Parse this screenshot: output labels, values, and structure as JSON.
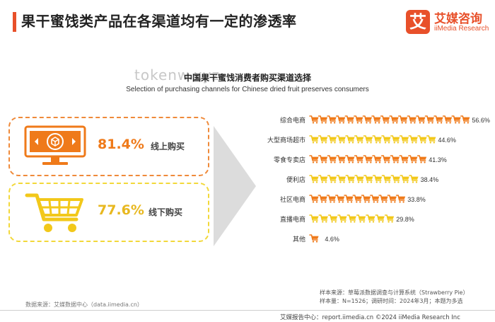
{
  "header": {
    "title": "果干蜜饯类产品在各渠道均有一定的渗透率",
    "logo_glyph": "艾",
    "logo_cn": "艾媒咨询",
    "logo_en": "iiMedia Research"
  },
  "watermark": "tokenw.xyz",
  "summary": {
    "online": {
      "pct": "81.4%",
      "label": "线上购买",
      "value": 81.4
    },
    "offline": {
      "pct": "77.6%",
      "label": "线下购买",
      "value": 77.6
    }
  },
  "chart_data": {
    "type": "bar",
    "orientation": "horizontal",
    "title": "中国果干蜜饯消费者购买渠道选择",
    "subtitle": "Selection of purchasing channels for Chinese dried fruit preserves consumers",
    "categories": [
      "综合电商",
      "大型商场超市",
      "零食专卖店",
      "便利店",
      "社区电商",
      "直播电商",
      "其他"
    ],
    "values": [
      56.6,
      44.6,
      41.3,
      38.4,
      33.8,
      29.8,
      4.6
    ],
    "value_labels": [
      "56.6%",
      "44.6%",
      "41.3%",
      "38.4%",
      "33.8%",
      "29.8%",
      "4.6%"
    ],
    "xlim": [
      0,
      60
    ],
    "colors": {
      "orange": "#ef7a1a",
      "yellow": "#f2c81a"
    },
    "bar_style": "stacked shopping-cart pictograms, alternating orange and yellow"
  },
  "footer": {
    "source_left": "数据来源：艾媒数据中心（data.iimedia.cn）",
    "note_line1": "样本来源：草莓派数据调查与计算系统（Strawberry Pie）",
    "note_line2": "样本量：N=1526；调研时间：2024年3月；本题为多选",
    "brand": "艾媒报告中心：report.iimedia.cn  ©2024  iiMedia Research Inc"
  }
}
